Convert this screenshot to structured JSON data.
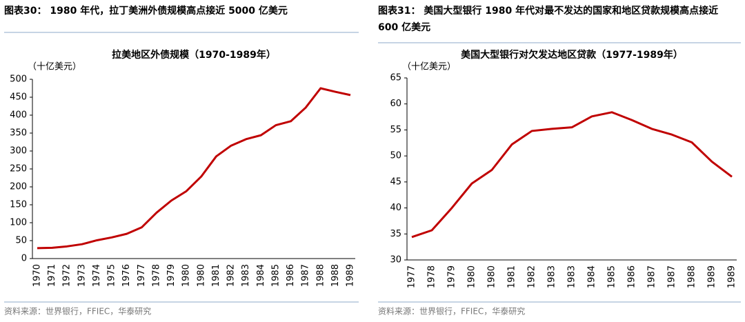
{
  "chart_data": [
    {
      "type": "line",
      "caption": "图表30： 1980 年代，拉丁美洲外债规模高点接近 5000 亿美元",
      "title": "拉美地区外债规模（1970-1989年）",
      "unit_label": "（十亿美元）",
      "source": "资料来源：世界银行，FFIEC，华泰研究",
      "categories": [
        "1970",
        "1971",
        "1972",
        "1973",
        "1974",
        "1975",
        "1976",
        "1977",
        "1978",
        "1979",
        "1980",
        "1980",
        "1981",
        "1982",
        "1983",
        "1984",
        "1985",
        "1986",
        "1987",
        "1988",
        "1988",
        "1989"
      ],
      "values": [
        29,
        30,
        34,
        40,
        51,
        59,
        69,
        87,
        128,
        162,
        188,
        229,
        285,
        315,
        333,
        344,
        372,
        383,
        421,
        475,
        465,
        456
      ],
      "color": "#c00000",
      "ylim": [
        0,
        500
      ],
      "yticks": [
        0,
        50,
        100,
        150,
        200,
        250,
        300,
        350,
        400,
        450,
        500
      ]
    },
    {
      "type": "line",
      "caption": "图表31： 美国大型银行 1980 年代对最不发达的国家和地区贷款规模高点接近 600 亿美元",
      "title": "美国大型银行对欠发达地区贷款（1977-1989年）",
      "unit_label": "（十亿美元）",
      "source": "资料来源：世界银行，FFIEC，华泰研究",
      "categories": [
        "1977",
        "1978",
        "1979",
        "1980",
        "1980",
        "1981",
        "1982",
        "1983",
        "1983",
        "1984",
        "1985",
        "1986",
        "1987",
        "1987",
        "1988",
        "1989",
        "1989"
      ],
      "values": [
        34.4,
        35.7,
        40.0,
        44.7,
        47.3,
        52.2,
        54.8,
        55.2,
        55.5,
        57.6,
        58.4,
        56.9,
        55.2,
        54.1,
        52.6,
        48.9,
        46.0
      ],
      "color": "#c00000",
      "ylim": [
        30,
        65
      ],
      "yticks": [
        30,
        35,
        40,
        45,
        50,
        55,
        60,
        65
      ]
    }
  ]
}
